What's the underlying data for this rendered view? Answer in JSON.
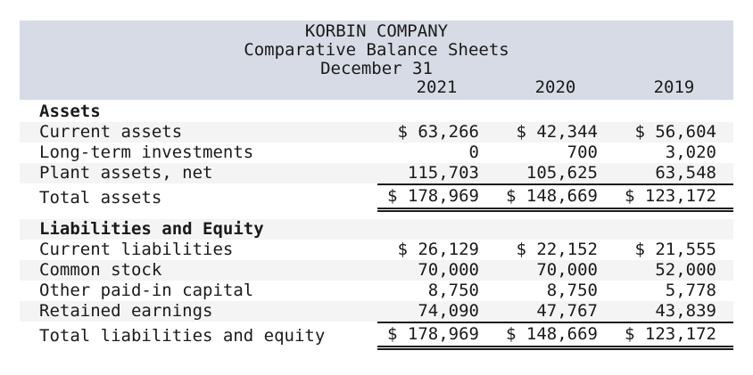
{
  "header": {
    "company": "KORBIN COMPANY",
    "title": "Comparative Balance Sheets",
    "date": "December 31",
    "years": [
      "2021",
      "2020",
      "2019"
    ]
  },
  "rows": [
    {
      "label": "Assets",
      "section": true
    },
    {
      "label": "Current assets",
      "values": [
        "$ 63,266",
        "$ 42,344",
        "$ 56,604"
      ]
    },
    {
      "label": "Long-term investments",
      "values": [
        "0",
        "700",
        "3,020"
      ]
    },
    {
      "label": "Plant assets, net",
      "values": [
        "115,703",
        "105,625",
        "63,548"
      ]
    },
    {
      "label": "Total assets",
      "values": [
        "$ 178,969",
        "$ 148,669",
        "$ 123,172"
      ],
      "total": true
    },
    {
      "label": "Liabilities and Equity",
      "section": true
    },
    {
      "label": "Current liabilities",
      "values": [
        "$ 26,129",
        "$ 22,152",
        "$ 21,555"
      ]
    },
    {
      "label": "Common stock",
      "values": [
        "70,000",
        "70,000",
        "52,000"
      ]
    },
    {
      "label": "Other paid-in capital",
      "values": [
        "8,750",
        "8,750",
        "5,778"
      ]
    },
    {
      "label": "Retained earnings",
      "values": [
        "74,090",
        "47,767",
        "43,839"
      ]
    },
    {
      "label": "Total liabilities and equity",
      "values": [
        "$ 178,969",
        "$ 148,669",
        "$ 123,172"
      ],
      "total": true
    }
  ],
  "colors": {
    "header_bg": "#d7dbe5",
    "stripe_bg": "#f4f4f4",
    "text": "#1a1a1a"
  }
}
